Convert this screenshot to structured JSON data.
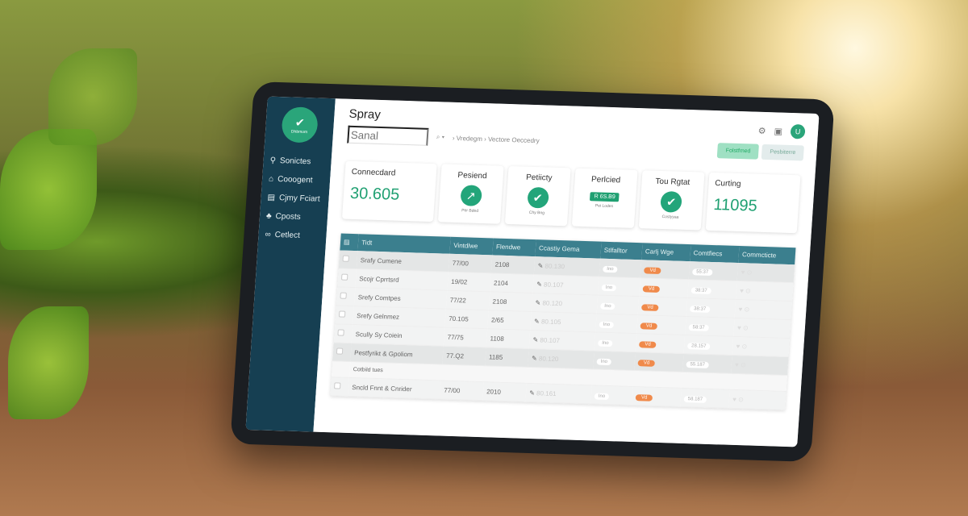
{
  "app": {
    "title": "Spray",
    "logo_text": "Dhbmom",
    "search_placeholder": "Sanal",
    "breadcrumb": [
      "Vredegm",
      "Vectore Oeccedry"
    ]
  },
  "sidebar": {
    "items": [
      {
        "label": "Sonictes",
        "icon": "pin-icon"
      },
      {
        "label": "Cooogent",
        "icon": "home-icon"
      },
      {
        "label": "Cjmy Fciart",
        "icon": "folder-icon"
      },
      {
        "label": "Cposts",
        "icon": "users-icon"
      },
      {
        "label": "Cetlect",
        "icon": "link-icon"
      }
    ]
  },
  "header": {
    "btn_primary": "Folstfmed",
    "btn_secondary": "Pesbiterre",
    "avatar": "U"
  },
  "cards": [
    {
      "title": "Connecdard",
      "value": "30.605"
    },
    {
      "title": "Pesiend",
      "icon": "chart-icon",
      "caption": "Per Bded"
    },
    {
      "title": "Petiicty",
      "icon": "check-icon",
      "caption": "Chy Bng"
    },
    {
      "title": "Perlcied",
      "pill": "R 6S.B9",
      "caption": "Pei Lodes"
    },
    {
      "title": "Tou Rgtat",
      "icon": "check-icon",
      "caption": "Costyyaa"
    },
    {
      "title": "Curting",
      "value": "11095"
    }
  ],
  "table": {
    "headers": [
      "Tidt",
      "Vintdlwe",
      "Flendwe",
      "Ccastiy Gema",
      "Stlfalltor",
      "Carlj Wge",
      "Comtfiecs",
      "Commcticte"
    ],
    "rows": [
      {
        "name": "Srafy Cumene",
        "c1": "77/00",
        "c2": "2108",
        "c3": "80.130",
        "c4": "Ino",
        "c5": "Vd",
        "c6": "55:37"
      },
      {
        "name": "Scojr Cprrtsrd",
        "c1": "19/02",
        "c2": "2104",
        "c3": "80.107",
        "c4": "Ino",
        "c5": "Vd",
        "c6": "38:37"
      },
      {
        "name": "Srefy Comtpes",
        "c1": "77/22",
        "c2": "2108",
        "c3": "80.120",
        "c4": "Ino",
        "c5": "Vd",
        "c6": "38:37"
      },
      {
        "name": "Srefy Gelnmez",
        "c1": "70.105",
        "c2": "2/65",
        "c3": "80.105",
        "c4": "Ino",
        "c5": "Vd",
        "c6": "58:37"
      },
      {
        "name": "Scully Sy Coiein",
        "c1": "77/75",
        "c2": "1108",
        "c3": "80.107",
        "c4": "Ino",
        "c5": "Vd",
        "c6": "28.157"
      },
      {
        "name": "Pestfyrikt & Gpoliom",
        "c1": "77.Q2",
        "c2": "1185",
        "c3": "80.120",
        "c4": "Ino",
        "c5": "Vd",
        "c6": "55.187"
      },
      {
        "name": "Sncld Fnnt & Cnrider",
        "c1": "77/00",
        "c2": "2010",
        "c3": "80.161",
        "c4": "Ino",
        "c5": "Vd",
        "c6": "58.187"
      }
    ],
    "subheader": "Cotbild tues"
  },
  "colors": {
    "accent": "#20a072",
    "sidebar": "#163f52",
    "table_header": "#3b7f8e",
    "badge": "#f08a4b"
  }
}
